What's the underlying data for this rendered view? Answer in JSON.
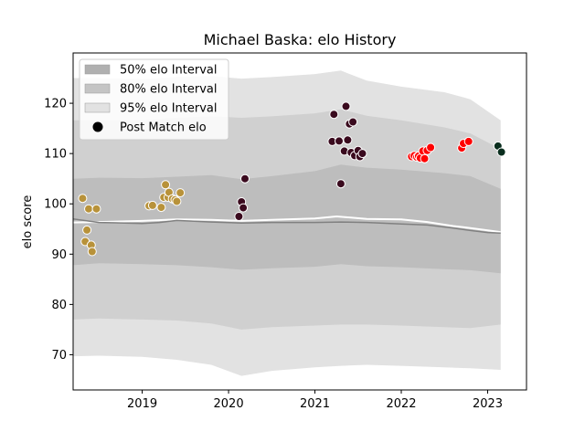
{
  "chart_data": {
    "type": "scatter",
    "title": "Michael Baska: elo History",
    "xlabel": "",
    "ylabel": "elo score",
    "xlim": [
      2018.2,
      2023.45
    ],
    "ylim": [
      63,
      130
    ],
    "x_ticks": [
      2019,
      2020,
      2021,
      2022,
      2023
    ],
    "y_ticks": [
      70,
      80,
      90,
      100,
      110,
      120
    ],
    "grid": false,
    "legend_position": "top-left",
    "legend": [
      {
        "label": "50% elo Interval",
        "kind": "band",
        "color": "#b0b0b0"
      },
      {
        "label": "80% elo Interval",
        "kind": "band",
        "color": "#c4c4c4"
      },
      {
        "label": "95% elo Interval",
        "kind": "band",
        "color": "#e2e2e2"
      },
      {
        "label": "Post Match elo",
        "kind": "marker",
        "color": "#000000"
      }
    ],
    "bands": [
      {
        "name": "95% elo Interval",
        "color": "#e2e2e2",
        "x": [
          2018.2,
          2018.5,
          2019.0,
          2019.4,
          2019.8,
          2020.15,
          2020.5,
          2021.0,
          2021.3,
          2021.6,
          2022.0,
          2022.5,
          2022.8,
          2023.15
        ],
        "upper": [
          125.0,
          125.0,
          124.8,
          125.2,
          125.4,
          124.9,
          125.2,
          125.8,
          126.5,
          124.5,
          123.3,
          122.2,
          120.8,
          116.6
        ],
        "lower": [
          69.7,
          69.8,
          69.6,
          69.0,
          68.0,
          65.8,
          66.8,
          67.5,
          67.8,
          68.0,
          67.8,
          67.5,
          67.3,
          67.0
        ]
      },
      {
        "name": "80% elo Interval",
        "color": "#d0d0d0",
        "x": [
          2018.2,
          2018.5,
          2019.0,
          2019.4,
          2019.8,
          2020.15,
          2020.5,
          2021.0,
          2021.3,
          2021.6,
          2022.0,
          2022.5,
          2022.8,
          2023.15
        ],
        "upper": [
          116.6,
          116.6,
          116.6,
          117.1,
          117.4,
          117.1,
          117.4,
          118.0,
          118.8,
          117.5,
          116.6,
          115.2,
          114.0,
          110.9
        ],
        "lower": [
          77.0,
          77.2,
          77.0,
          76.8,
          76.2,
          75.0,
          75.5,
          75.8,
          76.0,
          76.0,
          75.8,
          75.5,
          75.3,
          76.0
        ]
      },
      {
        "name": "50% elo Interval",
        "color": "#bdbdbd",
        "x": [
          2018.2,
          2018.5,
          2019.0,
          2019.4,
          2019.8,
          2020.15,
          2020.5,
          2021.0,
          2021.3,
          2021.6,
          2022.0,
          2022.5,
          2022.8,
          2023.15
        ],
        "upper": [
          105.0,
          105.2,
          105.1,
          105.4,
          105.7,
          104.9,
          105.5,
          106.5,
          107.8,
          107.2,
          106.8,
          106.1,
          105.5,
          103.0
        ],
        "lower": [
          87.8,
          88.2,
          88.0,
          87.8,
          87.4,
          86.9,
          87.2,
          87.5,
          88.0,
          87.6,
          87.4,
          87.0,
          86.8,
          86.2
        ]
      }
    ],
    "lines": [
      {
        "color": "#ffffff",
        "width": 2,
        "x": [
          2018.2,
          2018.5,
          2019.0,
          2019.4,
          2019.8,
          2020.15,
          2020.5,
          2021.0,
          2021.25,
          2021.6,
          2022.0,
          2022.3,
          2022.6,
          2022.8,
          2023.15
        ],
        "y": [
          96.3,
          96.4,
          96.6,
          96.9,
          96.8,
          96.6,
          96.8,
          97.1,
          97.5,
          97.0,
          96.9,
          96.4,
          95.6,
          95.2,
          94.4
        ]
      },
      {
        "color": "#808080",
        "width": 1.5,
        "x": [
          2018.2,
          2018.5,
          2019.0,
          2019.2,
          2019.4,
          2019.8,
          2020.15,
          2020.5,
          2021.0,
          2021.3,
          2021.6,
          2022.0,
          2022.3,
          2022.6,
          2022.8,
          2023.0,
          2023.15
        ],
        "y": [
          97.0,
          96.3,
          96.1,
          96.3,
          96.7,
          96.4,
          96.2,
          96.3,
          96.3,
          96.4,
          96.3,
          96.0,
          95.8,
          95.2,
          94.7,
          94.3,
          94.2
        ]
      }
    ],
    "series": [
      {
        "color": "#b8923a",
        "points": [
          [
            2018.31,
            101.1
          ],
          [
            2018.34,
            92.5
          ],
          [
            2018.36,
            94.8
          ],
          [
            2018.38,
            99.0
          ],
          [
            2018.41,
            91.8
          ],
          [
            2018.42,
            90.5
          ],
          [
            2018.47,
            99.0
          ],
          [
            2019.08,
            99.6
          ],
          [
            2019.12,
            99.7
          ],
          [
            2019.22,
            99.3
          ],
          [
            2019.25,
            101.3
          ],
          [
            2019.27,
            103.8
          ],
          [
            2019.3,
            101.3
          ],
          [
            2019.31,
            102.3
          ],
          [
            2019.35,
            101.0
          ],
          [
            2019.38,
            100.8
          ],
          [
            2019.4,
            100.5
          ],
          [
            2019.44,
            102.2
          ]
        ]
      },
      {
        "color": "#3a0a1e",
        "points": [
          [
            2020.12,
            97.5
          ],
          [
            2020.15,
            100.4
          ],
          [
            2020.17,
            99.2
          ],
          [
            2020.19,
            105.0
          ],
          [
            2021.2,
            112.4
          ],
          [
            2021.22,
            117.8
          ],
          [
            2021.28,
            112.5
          ],
          [
            2021.3,
            104.0
          ],
          [
            2021.34,
            110.5
          ],
          [
            2021.36,
            119.4
          ],
          [
            2021.38,
            112.7
          ],
          [
            2021.4,
            115.9
          ],
          [
            2021.42,
            110.2
          ],
          [
            2021.44,
            116.3
          ],
          [
            2021.46,
            109.6
          ],
          [
            2021.5,
            110.6
          ],
          [
            2021.52,
            109.4
          ],
          [
            2021.55,
            110.0
          ]
        ]
      },
      {
        "color": "#ff0000",
        "points": [
          [
            2022.12,
            109.4
          ],
          [
            2022.15,
            109.6
          ],
          [
            2022.18,
            109.3
          ],
          [
            2022.2,
            109.5
          ],
          [
            2022.22,
            109.1
          ],
          [
            2022.25,
            110.5
          ],
          [
            2022.27,
            109.0
          ],
          [
            2022.3,
            110.6
          ],
          [
            2022.34,
            111.2
          ],
          [
            2022.7,
            111.1
          ],
          [
            2022.72,
            112.0
          ],
          [
            2022.78,
            112.4
          ]
        ]
      },
      {
        "color": "#0a2e1e",
        "points": [
          [
            2023.12,
            111.5
          ],
          [
            2023.16,
            110.3
          ]
        ]
      }
    ]
  }
}
